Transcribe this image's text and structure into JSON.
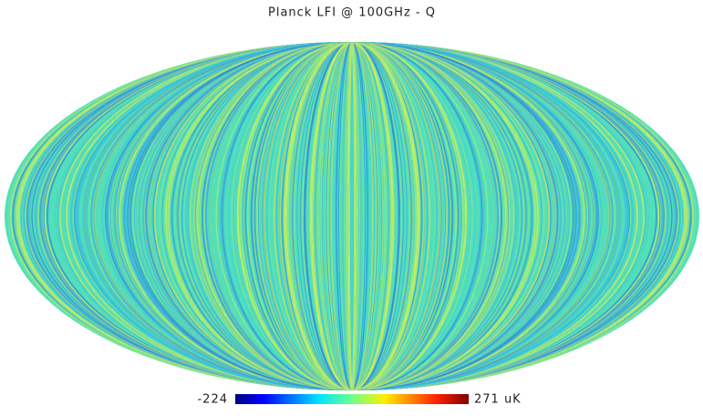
{
  "title": "Planck LFI @ 100GHz - Q",
  "colorbar": {
    "min": -224,
    "max": {
      "value": 271,
      "label": "271 uK"
    }
  }
}
